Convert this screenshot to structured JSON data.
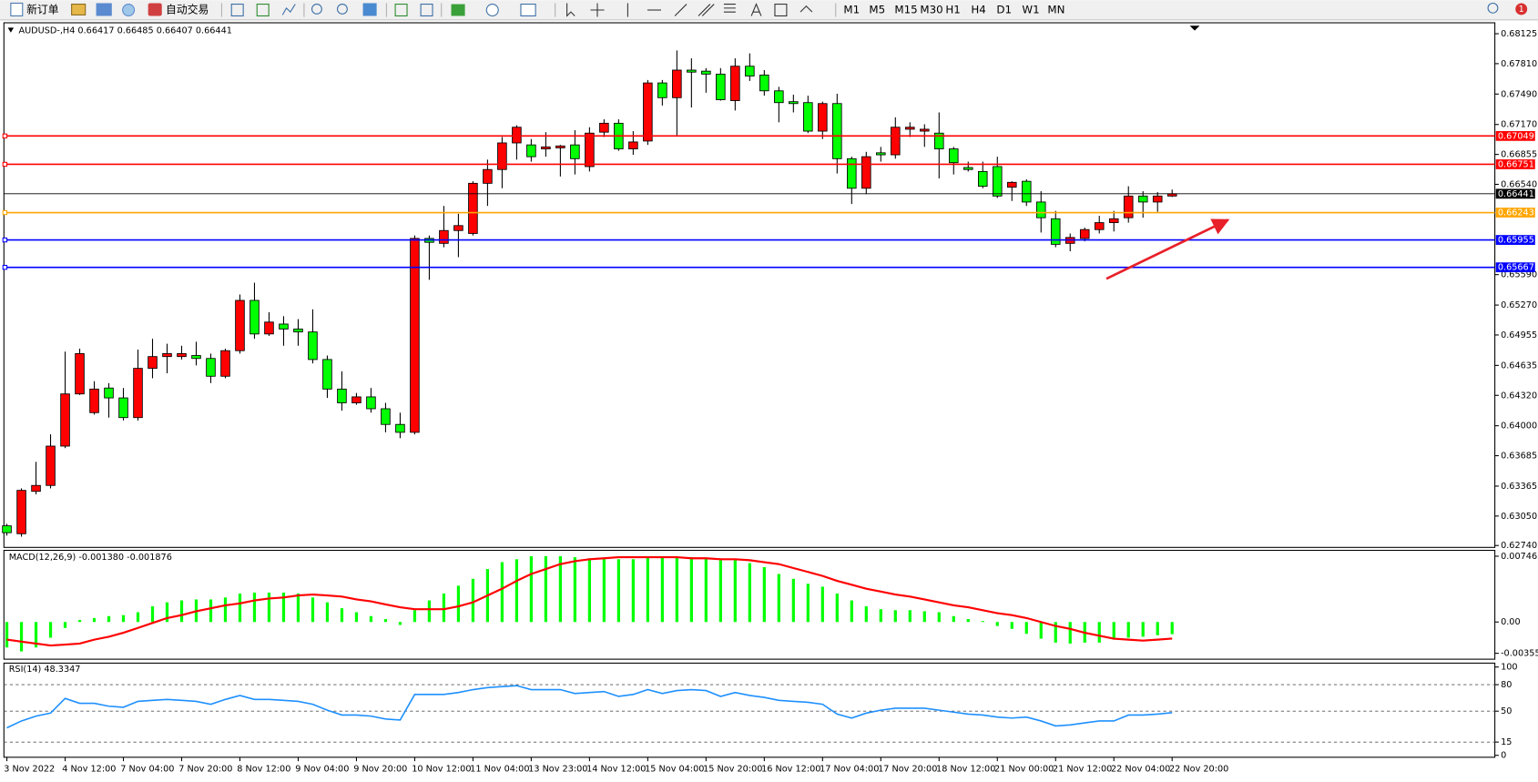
{
  "toolbar": {
    "new_order": "新订单",
    "auto_trading": "自动交易",
    "timeframes": [
      "M1",
      "M5",
      "M15",
      "M30",
      "H1",
      "H4",
      "D1",
      "W1",
      "MN"
    ],
    "notifications": 1
  },
  "chart_data": [
    {
      "type": "candlestick",
      "title": "AUDUSD-,H4 0.66417 0.66485 0.66407 0.66441",
      "categories": [
        "3 Nov 2022",
        null,
        null,
        null,
        "4 Nov 12:00",
        null,
        null,
        null,
        "7 Nov 04:00",
        null,
        null,
        null,
        "7 Nov 20:00",
        null,
        null,
        null,
        "8 Nov 12:00",
        null,
        null,
        null,
        "9 Nov 04:00",
        null,
        null,
        null,
        "9 Nov 20:00",
        null,
        null,
        null,
        "10 Nov 12:00",
        null,
        null,
        null,
        "11 Nov 04:00",
        null,
        null,
        null,
        "13 Nov 23:00",
        null,
        null,
        null,
        "14 Nov 12:00",
        null,
        null,
        null,
        "15 Nov 04:00",
        null,
        null,
        null,
        "15 Nov 20:00",
        null,
        null,
        null,
        "16 Nov 12:00",
        null,
        null,
        null,
        "17 Nov 04:00",
        null,
        null,
        null,
        "17 Nov 20:00",
        null,
        null,
        null,
        "18 Nov 12:00",
        null,
        null,
        null,
        "21 Nov 00:00",
        null,
        null,
        null,
        "21 Nov 12:00",
        null,
        null,
        null,
        "22 Nov 04:00",
        null,
        null,
        null,
        "22 Nov 20:00"
      ],
      "open": [
        0.62947,
        0.62864,
        0.6331,
        0.63372,
        0.63786,
        0.64335,
        0.64138,
        0.64397,
        0.64293,
        0.64086,
        0.64604,
        0.64728,
        0.64728,
        0.64739,
        0.64708,
        0.64521,
        0.6479,
        0.65319,
        0.64966,
        0.6507,
        0.65018,
        0.64987,
        0.64697,
        0.64386,
        0.64241,
        0.64304,
        0.64179,
        0.64014,
        0.63931,
        0.65971,
        0.65919,
        0.66054,
        0.66023,
        0.66551,
        0.66696,
        0.66976,
        0.66955,
        0.66913,
        0.66924,
        0.66955,
        0.66727,
        0.67089,
        0.67183,
        0.66913,
        0.66996,
        0.67607,
        0.67452,
        0.67742,
        0.67731,
        0.677,
        0.67421,
        0.67783,
        0.6769,
        0.67524,
        0.6741,
        0.674,
        0.671,
        0.6739,
        0.6681,
        0.66499,
        0.66872,
        0.66851,
        0.6712,
        0.671,
        0.67079,
        0.66913,
        0.66717,
        0.66675,
        0.66727,
        0.6651,
        0.66572,
        0.66354,
        0.66178,
        0.65919,
        0.65971,
        0.66064,
        0.66137,
        0.66189,
        0.66417,
        0.66354,
        0.66417
      ],
      "high": [
        0.62968,
        0.63341,
        0.6362,
        0.6391,
        0.6478,
        0.64811,
        0.64469,
        0.64449,
        0.64397,
        0.64801,
        0.64915,
        0.64863,
        0.64842,
        0.64884,
        0.64759,
        0.64811,
        0.65381,
        0.65505,
        0.65194,
        0.65153,
        0.65122,
        0.65225,
        0.64739,
        0.64573,
        0.64345,
        0.64397,
        0.64241,
        0.64138,
        0.66002,
        0.66002,
        0.66313,
        0.6623,
        0.66572,
        0.668,
        0.67038,
        0.67162,
        0.67017,
        0.67089,
        0.66955,
        0.6711,
        0.67141,
        0.67224,
        0.67224,
        0.671,
        0.67638,
        0.67638,
        0.67949,
        0.67866,
        0.67763,
        0.67763,
        0.67866,
        0.67918,
        0.67742,
        0.67566,
        0.67483,
        0.67473,
        0.6741,
        0.67493,
        0.66831,
        0.66882,
        0.66934,
        0.67245,
        0.67193,
        0.67172,
        0.67297,
        0.66934,
        0.66779,
        0.66779,
        0.66831,
        0.66572,
        0.66593,
        0.66468,
        0.66261,
        0.66023,
        0.66085,
        0.66209,
        0.66261,
        0.6652,
        0.66468,
        0.66458,
        0.66485
      ],
      "low": [
        0.62844,
        0.62833,
        0.63278,
        0.63341,
        0.63765,
        0.64324,
        0.64117,
        0.64086,
        0.64055,
        0.64055,
        0.645,
        0.64552,
        0.64697,
        0.64635,
        0.64449,
        0.645,
        0.64759,
        0.64915,
        0.64946,
        0.64842,
        0.64842,
        0.64656,
        0.64293,
        0.64159,
        0.64221,
        0.64138,
        0.63931,
        0.63869,
        0.6391,
        0.65536,
        0.65878,
        0.65774,
        0.66002,
        0.66313,
        0.66499,
        0.668,
        0.66779,
        0.66831,
        0.66623,
        0.66644,
        0.66675,
        0.67038,
        0.66893,
        0.66851,
        0.66955,
        0.67369,
        0.67058,
        0.67348,
        0.67504,
        0.67421,
        0.67317,
        0.67628,
        0.67473,
        0.67193,
        0.67297,
        0.67079,
        0.67017,
        0.66654,
        0.66333,
        0.66437,
        0.66779,
        0.6681,
        0.67038,
        0.66934,
        0.66603,
        0.66644,
        0.66675,
        0.66499,
        0.66396,
        0.66365,
        0.66313,
        0.66033,
        0.65878,
        0.65836,
        0.6594,
        0.66023,
        0.66044,
        0.66137,
        0.66189,
        0.66251,
        0.66407
      ],
      "close": [
        0.62875,
        0.6332,
        0.63372,
        0.63786,
        0.64335,
        0.64759,
        0.64386,
        0.64293,
        0.64086,
        0.64604,
        0.64728,
        0.64759,
        0.64759,
        0.64708,
        0.64521,
        0.6479,
        0.65319,
        0.64966,
        0.65091,
        0.65018,
        0.64987,
        0.64697,
        0.64386,
        0.64241,
        0.64304,
        0.64179,
        0.64014,
        0.63931,
        0.65971,
        0.6593,
        0.66054,
        0.66106,
        0.66551,
        0.66696,
        0.66976,
        0.67141,
        0.66831,
        0.66934,
        0.66944,
        0.6681,
        0.67079,
        0.67183,
        0.66913,
        0.66986,
        0.67607,
        0.67452,
        0.67742,
        0.67721,
        0.677,
        0.67431,
        0.67783,
        0.6768,
        0.67524,
        0.674,
        0.6739,
        0.671,
        0.6739,
        0.6681,
        0.66499,
        0.66831,
        0.66851,
        0.67141,
        0.67141,
        0.6712,
        0.66913,
        0.66768,
        0.66696,
        0.6652,
        0.66417,
        0.66561,
        0.66354,
        0.66189,
        0.65909,
        0.65981,
        0.66064,
        0.66137,
        0.66178,
        0.66417,
        0.66354,
        0.66417,
        0.66441
      ],
      "up_color": "#ff0000",
      "down_color": "#00ff00",
      "ylim": [
        0.6272,
        0.6824
      ],
      "yticks": [
        0.68125,
        {
          "value": 0.6781,
          "label": "0.67810"
        },
        {
          "value": 0.6749,
          "label": "0.67490"
        },
        {
          "value": 0.6717,
          "label": "0.67170"
        },
        0.66855,
        {
          "value": 0.6654,
          "label": "0.66540"
        },
        {
          "value": 0.6559,
          "label": "0.65590"
        },
        {
          "value": 0.6527,
          "label": "0.65270"
        },
        0.64955,
        0.64635,
        {
          "value": 0.6432,
          "label": "0.64320"
        },
        {
          "value": 0.64,
          "label": "0.64000"
        },
        0.63685,
        0.63365,
        {
          "value": 0.6305,
          "label": "0.63050"
        },
        {
          "value": 0.6274,
          "label": "0.62740"
        }
      ],
      "levels": [
        {
          "value": 0.67049,
          "color": "#ff0000"
        },
        {
          "value": 0.66751,
          "color": "#ff0000"
        },
        {
          "value": 0.66243,
          "color": "#ffa500"
        },
        {
          "value": 0.65955,
          "color": "#0000ff"
        },
        {
          "value": 0.65667,
          "color": "#0000ff"
        }
      ],
      "current_price": 0.66441,
      "current_color": "#000000"
    },
    {
      "type": "macd",
      "title": "MACD(12,26,9) -0.001380 -0.001876",
      "values": [
        -0.00289,
        -0.00334,
        -0.00289,
        -0.00178,
        -0.00067,
        0.00022,
        0.00045,
        0.00067,
        0.00078,
        0.00111,
        0.00178,
        0.00223,
        0.00245,
        0.00256,
        0.00256,
        0.00278,
        0.00323,
        0.00334,
        0.00334,
        0.00334,
        0.00323,
        0.00278,
        0.00223,
        0.00156,
        0.00111,
        0.00067,
        0.00033,
        -0.00033,
        0.00134,
        0.00245,
        0.00323,
        0.00412,
        0.0049,
        0.00601,
        0.00679,
        0.00712,
        0.00746,
        0.00746,
        0.00746,
        0.00735,
        0.00723,
        0.00712,
        0.00712,
        0.00712,
        0.00735,
        0.00735,
        0.00735,
        0.00735,
        0.00723,
        0.00701,
        0.00701,
        0.00668,
        0.00623,
        0.00545,
        0.0049,
        0.00434,
        0.00401,
        0.00323,
        0.00245,
        0.00178,
        0.00145,
        0.00134,
        0.00134,
        0.00122,
        0.00111,
        0.00067,
        0.00033,
        0.00011,
        -0.00045,
        -0.00078,
        -0.00134,
        -0.00189,
        -0.00234,
        -0.00245,
        -0.00234,
        -0.00234,
        -0.002,
        -0.00178,
        -0.00167,
        -0.0015,
        -0.00138
      ],
      "color": "#00ff00",
      "signal": [
        -0.002,
        -0.00223,
        -0.00245,
        -0.00267,
        -0.00256,
        -0.00245,
        -0.002,
        -0.00167,
        -0.00122,
        -0.00067,
        -0.00011,
        0.00045,
        0.00078,
        0.00122,
        0.00156,
        0.00189,
        0.00211,
        0.00245,
        0.00267,
        0.00278,
        0.00301,
        0.00312,
        0.00301,
        0.00289,
        0.00256,
        0.00234,
        0.002,
        0.00167,
        0.00145,
        0.00145,
        0.00145,
        0.00178,
        0.00223,
        0.00301,
        0.00378,
        0.00467,
        0.00545,
        0.00601,
        0.00657,
        0.0069,
        0.00712,
        0.00723,
        0.00735,
        0.00735,
        0.00735,
        0.00735,
        0.00735,
        0.00723,
        0.00723,
        0.00712,
        0.00712,
        0.00701,
        0.00679,
        0.00657,
        0.00612,
        0.00568,
        0.00523,
        0.00467,
        0.00423,
        0.00378,
        0.00345,
        0.00312,
        0.00289,
        0.00256,
        0.00223,
        0.00189,
        0.00167,
        0.00134,
        0.001,
        0.00078,
        0.00045,
        0,
        -0.00045,
        -0.00078,
        -0.00122,
        -0.00156,
        -0.00189,
        -0.002,
        -0.00211,
        -0.002,
        -0.001876
      ],
      "signal_color": "#ff0000",
      "ylim": [
        -0.00422,
        0.00813
      ],
      "yticks": [
        0.007465,
        {
          "value": 0,
          "label": "0.00"
        },
        -0.003551
      ]
    },
    {
      "type": "line",
      "title": "RSI(14) 48.3347",
      "values": [
        31.1,
        38.9,
        44.4,
        47.8,
        64.4,
        58.9,
        58.9,
        55.6,
        54.4,
        61.1,
        62.2,
        63.3,
        62.2,
        61.1,
        57.8,
        63.3,
        67.8,
        63.3,
        63.3,
        62.2,
        61.1,
        57.8,
        51.1,
        45.6,
        45.6,
        44.4,
        41.1,
        40.0,
        68.9,
        68.9,
        68.9,
        71.1,
        74.4,
        76.7,
        77.8,
        78.9,
        74.4,
        74.4,
        74.4,
        70.0,
        71.1,
        72.2,
        66.7,
        68.9,
        74.4,
        70.0,
        73.3,
        74.4,
        73.3,
        66.7,
        71.1,
        67.8,
        65.6,
        62.2,
        61.1,
        60.0,
        57.8,
        46.7,
        42.2,
        47.8,
        51.1,
        53.3,
        53.3,
        53.3,
        51.1,
        48.9,
        46.7,
        45.6,
        43.3,
        42.2,
        43.3,
        38.9,
        33.3,
        34.4,
        36.7,
        38.9,
        38.9,
        45.6,
        45.6,
        46.7,
        48.3347
      ],
      "color": "#1e90ff",
      "ylim": [
        -2.2,
        104.4
      ],
      "yticks": [
        100,
        80,
        50,
        15,
        0
      ],
      "grid": "dashed"
    }
  ]
}
